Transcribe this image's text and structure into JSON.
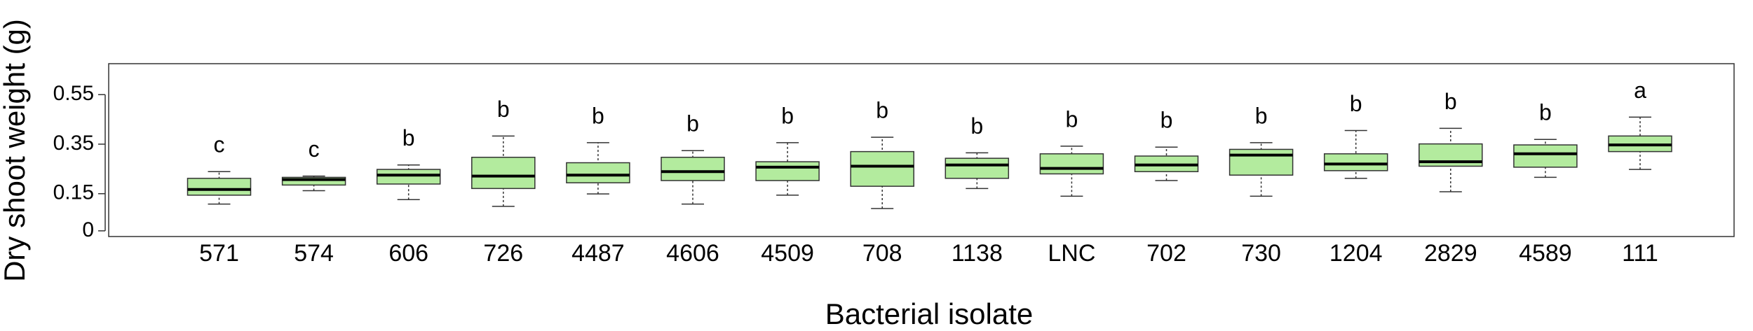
{
  "chart_data": {
    "type": "box",
    "x_label": "Bacterial isolate",
    "y_label": "Dry shoot weight (g)",
    "categories": [
      "571",
      "574",
      "606",
      "726",
      "4487",
      "4606",
      "4509",
      "708",
      "1138",
      "LNC",
      "702",
      "730",
      "1204",
      "2829",
      "4589",
      "111"
    ],
    "color": "#b3eb9e",
    "min": [
      0.108,
      0.162,
      0.126,
      0.099,
      0.149,
      0.108,
      0.144,
      0.09,
      0.171,
      0.14,
      0.203,
      0.14,
      0.212,
      0.158,
      0.216,
      0.248
    ],
    "q1": [
      0.144,
      0.185,
      0.189,
      0.171,
      0.194,
      0.203,
      0.203,
      0.18,
      0.212,
      0.23,
      0.239,
      0.225,
      0.243,
      0.261,
      0.257,
      0.32
    ],
    "median": [
      0.167,
      0.207,
      0.225,
      0.221,
      0.225,
      0.239,
      0.257,
      0.261,
      0.266,
      0.252,
      0.266,
      0.306,
      0.27,
      0.279,
      0.311,
      0.347
    ],
    "q3": [
      0.212,
      0.216,
      0.248,
      0.297,
      0.275,
      0.297,
      0.279,
      0.32,
      0.293,
      0.311,
      0.302,
      0.329,
      0.311,
      0.351,
      0.347,
      0.383
    ],
    "max": [
      0.239,
      0.221,
      0.266,
      0.383,
      0.356,
      0.324,
      0.356,
      0.378,
      0.315,
      0.342,
      0.338,
      0.356,
      0.405,
      0.414,
      0.369,
      0.459
    ],
    "annotations": [
      "c",
      "c",
      "b",
      "b",
      "b",
      "b",
      "b",
      "b",
      "b",
      "b",
      "b",
      "b",
      "b",
      "b",
      "b",
      "a"
    ],
    "ylim": [
      -0.023,
      0.675
    ],
    "yticks": [
      0,
      0.15,
      0.35,
      0.55
    ]
  }
}
